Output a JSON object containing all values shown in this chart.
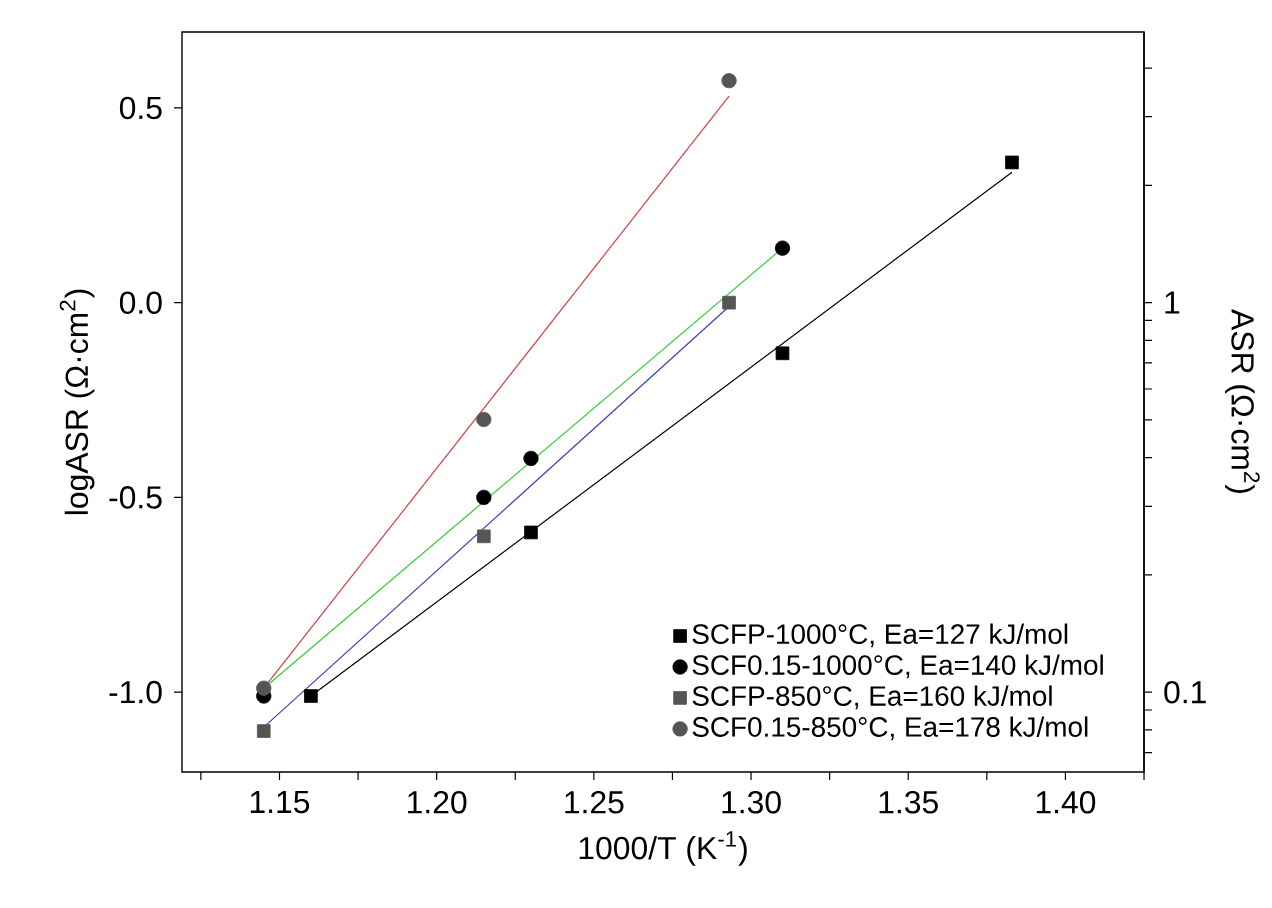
{
  "chart_data": {
    "type": "scatter",
    "xlabel": "1000/T (K$^{-1}$)",
    "ylabel": "logASR (Ω·cm$^{2}$)",
    "y2label": "ASR (Ω·cm$^{2}$)",
    "xlim": [
      1.119,
      1.425
    ],
    "ylim": [
      -1.205,
      0.695
    ],
    "y2lim": [
      0.0624,
      4.95
    ],
    "log": "y2",
    "xticks": [
      {
        "value": 1.125,
        "label": null
      },
      1.15,
      {
        "value": 1.175,
        "label": null
      },
      {
        "value": 1.2,
        "label": "1.20"
      },
      {
        "value": 1.225,
        "label": null
      },
      1.25,
      {
        "value": 1.275,
        "label": null
      },
      {
        "value": 1.3,
        "label": "1.30"
      },
      {
        "value": 1.325,
        "label": null
      },
      1.35,
      {
        "value": 1.375,
        "label": null
      },
      {
        "value": 1.4,
        "label": "1.40"
      },
      {
        "value": 1.425,
        "label": null
      }
    ],
    "yticks": [
      {
        "value": -1.0,
        "label": "-1.0"
      },
      {
        "value": -0.5,
        "label": "-0.5"
      },
      {
        "value": 0.0,
        "label": "0.0"
      },
      0.5
    ],
    "y2ticks": [
      {
        "value": 0.07,
        "label": null
      },
      {
        "value": 0.08,
        "label": null
      },
      {
        "value": 0.09,
        "label": null
      },
      0.1,
      {
        "value": 0.2,
        "label": null
      },
      {
        "value": 0.3,
        "label": null
      },
      {
        "value": 0.4,
        "label": null
      },
      {
        "value": 0.5,
        "label": null
      },
      {
        "value": 0.6,
        "label": null
      },
      {
        "value": 0.7,
        "label": null
      },
      {
        "value": 0.8,
        "label": null
      },
      {
        "value": 0.9,
        "label": null
      },
      1,
      {
        "value": 2,
        "label": null
      },
      {
        "value": 3,
        "label": null
      },
      {
        "value": 4,
        "label": null
      }
    ],
    "legend": "bottom right",
    "series": [
      {
        "name": "SCFP-1000°C, Ea=127 kJ/mol",
        "marker": "square",
        "color": "#000000",
        "x": [
          1.16,
          1.23,
          1.31,
          1.383
        ],
        "values": [
          -1.01,
          -0.59,
          -0.13,
          0.36
        ]
      },
      {
        "name": "SCF0.15-1000°C, Ea=140 kJ/mol",
        "marker": "circle",
        "color": "#000000",
        "x": [
          1.145,
          1.215,
          1.23,
          1.31
        ],
        "values": [
          -1.01,
          -0.5,
          -0.4,
          0.14
        ]
      },
      {
        "name": "SCFP-850°C, Ea=160 kJ/mol",
        "marker": "square",
        "color": "#555555",
        "x": [
          1.145,
          1.215,
          1.293
        ],
        "values": [
          -1.1,
          -0.6,
          0.0
        ]
      },
      {
        "name": "SCF0.15-850°C, Ea=178 kJ/mol",
        "marker": "circle",
        "color": "#555555",
        "x": [
          1.145,
          1.215,
          1.293
        ],
        "values": [
          -0.99,
          -0.3,
          0.57
        ]
      },
      {
        "type": "line",
        "marker": "none",
        "color": "#000000",
        "x": [
          1.16,
          1.383
        ],
        "values": [
          -1.01,
          0.335
        ]
      },
      {
        "type": "line",
        "marker": "none",
        "color": "#33cc33",
        "x": [
          1.145,
          1.31
        ],
        "values": [
          -0.99,
          0.14
        ]
      },
      {
        "type": "line",
        "marker": "none",
        "color": "#4040b0",
        "x": [
          1.145,
          1.293
        ],
        "values": [
          -1.09,
          -0.01
        ]
      },
      {
        "type": "line",
        "marker": "none",
        "color": "#d04040",
        "x": [
          1.145,
          1.293
        ],
        "values": [
          -0.99,
          0.53
        ]
      }
    ]
  }
}
